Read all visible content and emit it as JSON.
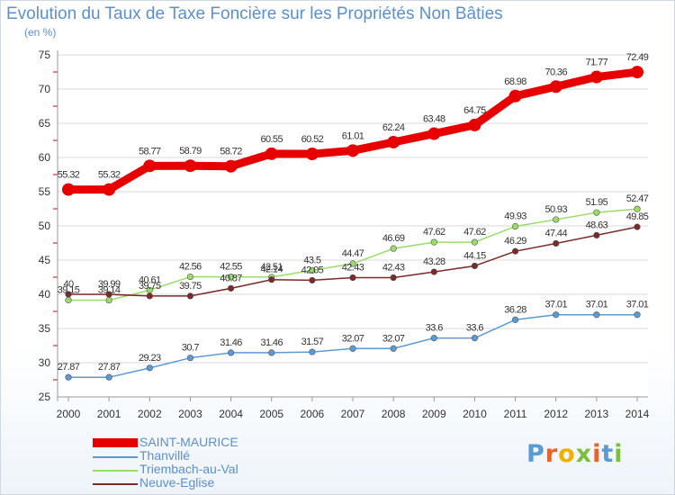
{
  "chart_data": {
    "type": "line",
    "title": "Evolution du Taux de Taxe Foncière sur les Propriétés Non Bâties",
    "ylabel": "(en %)",
    "xlabel": "",
    "x": [
      "2000",
      "2001",
      "2002",
      "2003",
      "2004",
      "2005",
      "2006",
      "2007",
      "2008",
      "2009",
      "2010",
      "2011",
      "2012",
      "2013",
      "2014"
    ],
    "ylim": [
      25,
      75
    ],
    "yticks": [
      25,
      30,
      35,
      40,
      45,
      50,
      55,
      60,
      65,
      70,
      75
    ],
    "series": [
      {
        "name": "SAINT-MAURICE",
        "color": "#e60000",
        "values": [
          55.32,
          55.32,
          58.77,
          58.79,
          58.72,
          60.55,
          60.52,
          61.01,
          62.24,
          63.48,
          64.75,
          68.98,
          70.36,
          71.77,
          72.49
        ],
        "labels": [
          "55.32",
          "55.32",
          "58.77",
          "58.79",
          "58.72",
          "60.55",
          "60.52",
          "61.01",
          "62.24",
          "63.48",
          "64.75",
          "68.98",
          "70.36",
          "71.77",
          "72.49"
        ]
      },
      {
        "name": "Thanvillé",
        "color": "#5b9bd5",
        "values": [
          27.87,
          27.87,
          29.23,
          30.7,
          31.46,
          31.46,
          31.57,
          32.07,
          32.07,
          33.6,
          33.6,
          36.28,
          37.01,
          37.01,
          37.01
        ],
        "labels": [
          "27.87",
          "27.87",
          "29.23",
          "30.7",
          "31.46",
          "31.46",
          "31.57",
          "32.07",
          "32.07",
          "33.6",
          "33.6",
          "36.28",
          "37.01",
          "37.01",
          "37.01"
        ]
      },
      {
        "name": "Triembach-au-Val",
        "color": "#99dd66",
        "values": [
          39.15,
          39.14,
          40.61,
          42.56,
          42.55,
          42.51,
          43.5,
          44.47,
          46.69,
          47.62,
          47.62,
          49.93,
          50.93,
          51.95,
          52.47
        ],
        "labels": [
          "39.15",
          "39.14",
          "40.61",
          "42.56",
          "42.55",
          "42.51",
          "43.5",
          "44.47",
          "46.69",
          "47.62",
          "47.62",
          "49.93",
          "50.93",
          "51.95",
          "52.47"
        ]
      },
      {
        "name": "Neuve-Eglise",
        "color": "#7a2a2a",
        "values": [
          40,
          39.99,
          39.75,
          39.75,
          40.87,
          42.14,
          42.05,
          42.43,
          42.43,
          43.28,
          44.15,
          46.29,
          47.44,
          48.63,
          49.85
        ],
        "labels": [
          "40",
          "39.99",
          "39.75",
          "39.75",
          "40.87",
          "42.14",
          "42.05",
          "42.43",
          "42.43",
          "43.28",
          "44.15",
          "46.29",
          "47.44",
          "48.63",
          "49.85"
        ]
      }
    ]
  },
  "logo": {
    "text": "Proxiti",
    "colors": [
      "#5b9bd5",
      "#e8622a",
      "#f0b000",
      "#7bbf3a",
      "#e8622a",
      "#5b9bd5",
      "#7bbf3a"
    ]
  }
}
